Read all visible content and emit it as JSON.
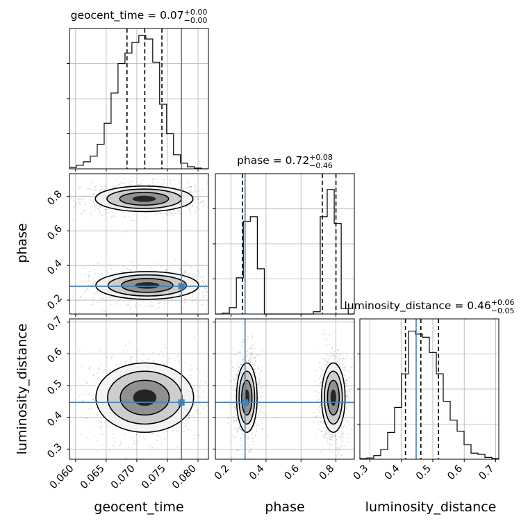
{
  "chart_data": {
    "type": "corner",
    "parameters": [
      "geocent_time",
      "phase",
      "luminosity_distance"
    ],
    "truth": {
      "geocent_time": 0.0773,
      "phase": 0.28,
      "luminosity_distance": 0.447
    },
    "colors": {
      "truth": "#4682b4",
      "hist": "#000000",
      "grid": "#b0b0b0"
    },
    "grid": true,
    "diagonal": [
      {
        "param": "geocent_time",
        "title_main": "geocent_time = 0.07",
        "title_sup": "+0.00",
        "title_sub": "−0.00",
        "xlim": [
          0.059,
          0.0817
        ],
        "ticks": [
          0.06,
          0.065,
          0.07,
          0.075,
          0.08
        ],
        "tick_labels": [
          "0.060",
          "0.065",
          "0.070",
          "0.075",
          "0.080"
        ],
        "quantiles": [
          0.0684,
          0.0713,
          0.0741
        ],
        "bin_edges": [
          0.059,
          0.06013,
          0.06127,
          0.0624,
          0.06353,
          0.06467,
          0.0658,
          0.06693,
          0.06807,
          0.0692,
          0.07033,
          0.07147,
          0.0726,
          0.07373,
          0.07487,
          0.076,
          0.07713,
          0.07827,
          0.0794,
          0.08053,
          0.0817
        ],
        "counts": [
          2,
          5,
          10,
          18,
          35,
          65,
          108,
          150,
          165,
          180,
          190,
          185,
          152,
          92,
          50,
          20,
          8,
          3,
          1,
          0
        ],
        "ymax": 200
      },
      {
        "param": "phase",
        "title_main": "phase = 0.72",
        "title_sup": "+0.08",
        "title_sub": "−0.46",
        "xlim": [
          0.11,
          0.905
        ],
        "ticks": [
          0.2,
          0.4,
          0.6,
          0.8
        ],
        "tick_labels": [
          "0.2",
          "0.4",
          "0.6",
          "0.8"
        ],
        "quantiles": [
          0.265,
          0.722,
          0.8
        ],
        "bin_edges": [
          0.11,
          0.15,
          0.19,
          0.23,
          0.27,
          0.31,
          0.35,
          0.39,
          0.43,
          0.47,
          0.51,
          0.55,
          0.59,
          0.63,
          0.67,
          0.71,
          0.75,
          0.79,
          0.83,
          0.87,
          0.905
        ],
        "counts": [
          0,
          2,
          14,
          80,
          205,
          215,
          100,
          0,
          0,
          0,
          0,
          0,
          0,
          0,
          5,
          215,
          275,
          200,
          12,
          0
        ],
        "ymax": 310
      },
      {
        "param": "luminosity_distance",
        "title_main": "luminosity_distance = 0.46",
        "title_sup": "+0.06",
        "title_sub": "−0.05",
        "xlim": [
          0.268,
          0.71
        ],
        "ticks": [
          0.3,
          0.4,
          0.5,
          0.6,
          0.7
        ],
        "tick_labels": [
          "0.3",
          "0.4",
          "0.5",
          "0.6",
          "0.7"
        ],
        "quantiles": [
          0.413,
          0.462,
          0.518
        ],
        "bin_edges": [
          0.268,
          0.2901,
          0.3122,
          0.3343,
          0.3564,
          0.3785,
          0.4006,
          0.4227,
          0.4448,
          0.4669,
          0.489,
          0.5111,
          0.5332,
          0.5553,
          0.5774,
          0.5995,
          0.6216,
          0.6437,
          0.6658,
          0.6879,
          0.71
        ],
        "counts": [
          1,
          2,
          6,
          16,
          44,
          85,
          140,
          210,
          205,
          200,
          175,
          140,
          95,
          64,
          46,
          24,
          10,
          8,
          3,
          1
        ],
        "ymax": 230
      }
    ],
    "offdiagonal": [
      {
        "x": "geocent_time",
        "y": "phase",
        "ylim": [
          0.12,
          0.93
        ],
        "yticks": [
          0.2,
          0.4,
          0.6,
          0.8
        ],
        "ytick_labels": [
          "0.2",
          "0.4",
          "0.6",
          "0.8"
        ],
        "modes": [
          {
            "center": [
              0.0712,
              0.785
            ],
            "sigma": [
              0.0038,
              0.035
            ]
          },
          {
            "center": [
              0.0717,
              0.285
            ],
            "sigma": [
              0.004,
              0.038
            ]
          }
        ]
      },
      {
        "x": "geocent_time",
        "y": "luminosity_distance",
        "ylim": [
          0.268,
          0.71
        ],
        "yticks": [
          0.3,
          0.4,
          0.5,
          0.6,
          0.7
        ],
        "ytick_labels": [
          "0.3",
          "0.4",
          "0.5",
          "0.6",
          "0.7"
        ],
        "modes": [
          {
            "center": [
              0.0713,
              0.462
            ],
            "sigma": [
              0.0038,
              0.052
            ]
          }
        ]
      },
      {
        "x": "phase",
        "y": "luminosity_distance",
        "ylim": [
          0.268,
          0.71
        ],
        "yticks": [
          0.3,
          0.4,
          0.5,
          0.6,
          0.7
        ],
        "ytick_labels": [
          "0.3",
          "0.4",
          "0.5",
          "0.6",
          "0.7"
        ],
        "modes": [
          {
            "center": [
              0.29,
              0.462
            ],
            "sigma": [
              0.028,
              0.052
            ]
          },
          {
            "center": [
              0.785,
              0.462
            ],
            "sigma": [
              0.032,
              0.052
            ]
          }
        ]
      }
    ],
    "axis_labels": {
      "x": [
        "geocent_time",
        "phase",
        "luminosity_distance"
      ],
      "y": [
        "phase",
        "luminosity_distance"
      ]
    }
  }
}
